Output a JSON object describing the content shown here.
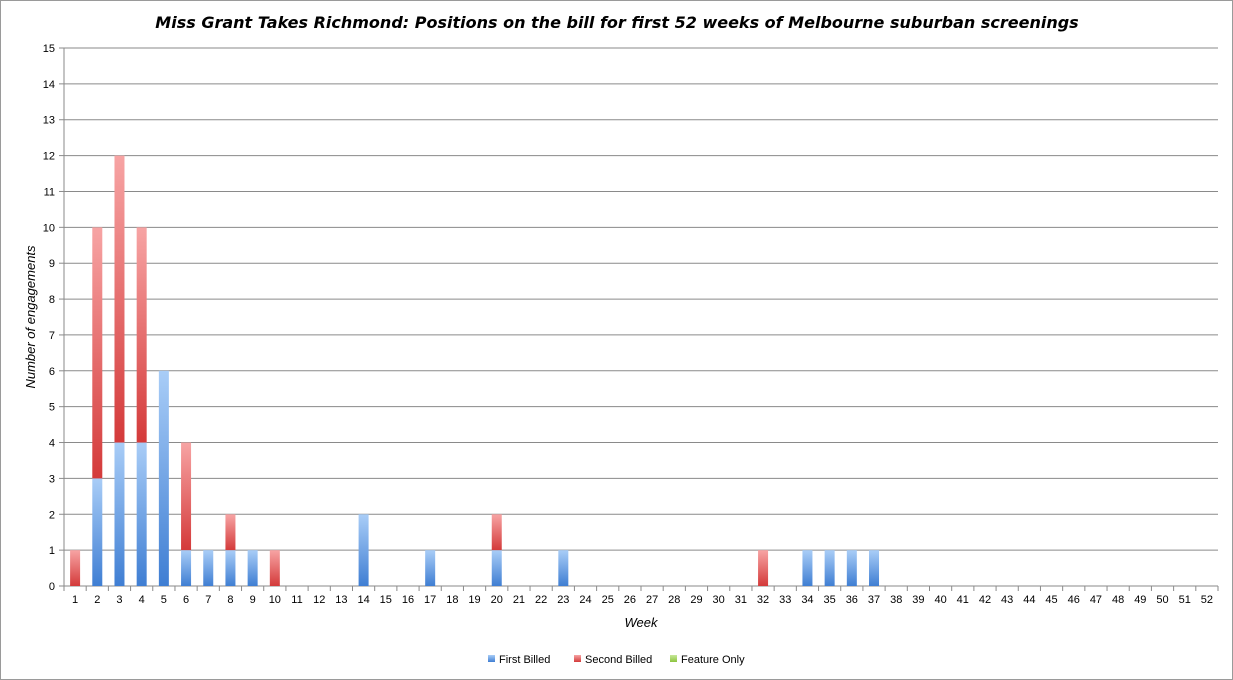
{
  "chart_data": {
    "type": "bar",
    "stacked": true,
    "title": "Miss Grant Takes Richmond: Positions on the bill for first 52 weeks of Melbourne suburban screenings",
    "xlabel": "Week",
    "ylabel": "Number of engagements",
    "ylim": [
      0,
      15
    ],
    "ytick_step": 1,
    "grid": true,
    "legend_position": "bottom",
    "categories": [
      "1",
      "2",
      "3",
      "4",
      "5",
      "6",
      "7",
      "8",
      "9",
      "10",
      "11",
      "12",
      "13",
      "14",
      "15",
      "16",
      "17",
      "18",
      "19",
      "20",
      "21",
      "22",
      "23",
      "24",
      "25",
      "26",
      "27",
      "28",
      "29",
      "30",
      "31",
      "32",
      "33",
      "34",
      "35",
      "36",
      "37",
      "38",
      "39",
      "40",
      "41",
      "42",
      "43",
      "44",
      "45",
      "46",
      "47",
      "48",
      "49",
      "50",
      "51",
      "52"
    ],
    "series": [
      {
        "name": "First Billed",
        "color": "#3f7ed3",
        "color_light": "#a9cdf7",
        "values": [
          0,
          3,
          4,
          4,
          6,
          1,
          1,
          1,
          1,
          0,
          0,
          0,
          0,
          2,
          0,
          0,
          1,
          0,
          0,
          1,
          0,
          0,
          1,
          0,
          0,
          0,
          0,
          0,
          0,
          0,
          0,
          0,
          0,
          1,
          1,
          1,
          1,
          0,
          0,
          0,
          0,
          0,
          0,
          0,
          0,
          0,
          0,
          0,
          0,
          0,
          0,
          0
        ]
      },
      {
        "name": "Second Billed",
        "color": "#d43a3a",
        "color_light": "#f7a4a4",
        "values": [
          1,
          7,
          8,
          6,
          0,
          3,
          0,
          1,
          0,
          1,
          0,
          0,
          0,
          0,
          0,
          0,
          0,
          0,
          0,
          1,
          0,
          0,
          0,
          0,
          0,
          0,
          0,
          0,
          0,
          0,
          0,
          1,
          0,
          0,
          0,
          0,
          0,
          0,
          0,
          0,
          0,
          0,
          0,
          0,
          0,
          0,
          0,
          0,
          0,
          0,
          0,
          0
        ]
      },
      {
        "name": "Feature Only",
        "color": "#8dc43f",
        "color_light": "#c7e89a",
        "values": [
          0,
          0,
          0,
          0,
          0,
          0,
          0,
          0,
          0,
          0,
          0,
          0,
          0,
          0,
          0,
          0,
          0,
          0,
          0,
          0,
          0,
          0,
          0,
          0,
          0,
          0,
          0,
          0,
          0,
          0,
          0,
          0,
          0,
          0,
          0,
          0,
          0,
          0,
          0,
          0,
          0,
          0,
          0,
          0,
          0,
          0,
          0,
          0,
          0,
          0,
          0,
          0
        ]
      }
    ]
  }
}
